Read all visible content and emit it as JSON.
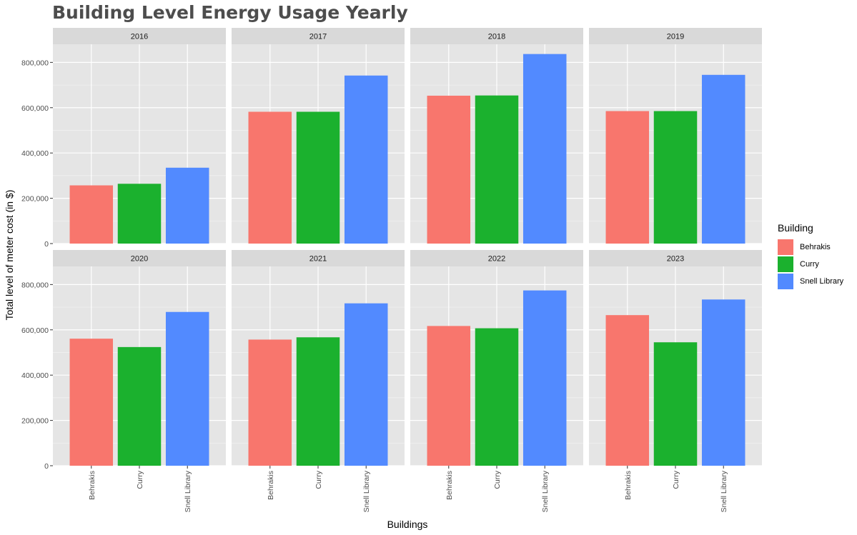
{
  "title": "Building Level Energy Usage Yearly",
  "chart_data": {
    "type": "bar",
    "title": "Building Level Energy Usage Yearly",
    "xlabel": "Buildings",
    "ylabel": "Total level of meter cost (in $)",
    "categories": [
      "Behrakis",
      "Curry",
      "Snell Library"
    ],
    "ylim": [
      0,
      880000
    ],
    "yticks": [
      0,
      200000,
      400000,
      600000,
      800000
    ],
    "ytick_labels": [
      "0",
      "200,000",
      "400,000",
      "600,000",
      "800,000"
    ],
    "grid": true,
    "legend": {
      "title": "Building",
      "position": "right",
      "entries": [
        "Behrakis",
        "Curry",
        "Snell Library"
      ]
    },
    "colors": {
      "Behrakis": "#F8766D",
      "Curry": "#1BB12E",
      "Snell Library": "#528AFF"
    },
    "panels": [
      {
        "label": "2016",
        "values": [
          257000,
          264000,
          335000
        ]
      },
      {
        "label": "2017",
        "values": [
          582000,
          582000,
          742000
        ]
      },
      {
        "label": "2018",
        "values": [
          653000,
          654000,
          837000
        ]
      },
      {
        "label": "2019",
        "values": [
          585000,
          585000,
          745000
        ]
      },
      {
        "label": "2020",
        "values": [
          561000,
          524000,
          679000
        ]
      },
      {
        "label": "2021",
        "values": [
          557000,
          567000,
          717000
        ]
      },
      {
        "label": "2022",
        "values": [
          617000,
          607000,
          774000
        ]
      },
      {
        "label": "2023",
        "values": [
          665000,
          545000,
          734000
        ]
      }
    ]
  }
}
